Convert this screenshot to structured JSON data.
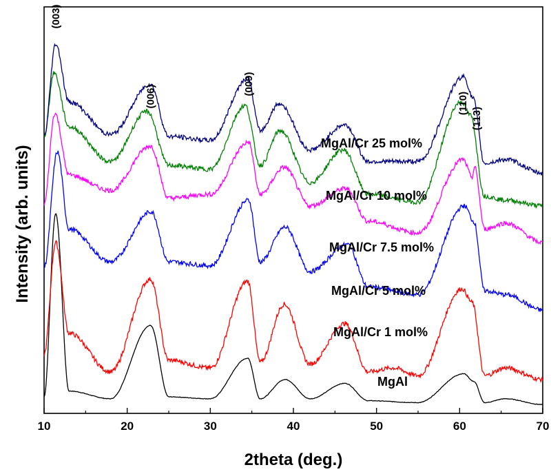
{
  "chart_data": {
    "type": "line",
    "xlabel": "2theta (deg.)",
    "ylabel": "Intensity (arb. units)",
    "xlim": [
      10,
      70
    ],
    "xticks": [
      "10",
      "20",
      "30",
      "40",
      "50",
      "60",
      "70"
    ],
    "y_tick_labels_shown": false,
    "grid": false,
    "legend": "inline labels next to each curve",
    "peak_labels": [
      {
        "text": "(003)",
        "x": 11.4
      },
      {
        "text": "(006)",
        "x": 22.8
      },
      {
        "text": "(009)",
        "x": 34.6
      },
      {
        "text": "(110)",
        "x": 60.4
      },
      {
        "text": "(113)",
        "x": 61.7
      }
    ],
    "series": [
      {
        "name": "MgAl",
        "color": "#000000",
        "x": [
          10,
          11.4,
          13,
          18,
          22.8,
          25,
          30,
          34.5,
          36,
          39,
          42,
          46.2,
          49,
          55,
          60.5,
          61.7,
          63,
          65.5,
          70
        ],
        "y": [
          5,
          100,
          8,
          4,
          42,
          5,
          4,
          25,
          4,
          14,
          4,
          12,
          3,
          2,
          17,
          13,
          2,
          4,
          1
        ]
      },
      {
        "name": "MgAl/Cr 1 mol%",
        "color": "#ff0000",
        "x": [
          10,
          11.4,
          13,
          18,
          22.8,
          25,
          30,
          34.5,
          36,
          38.9,
          42,
          46.2,
          49,
          52,
          55,
          60.3,
          61.5,
          63,
          65.5,
          70
        ],
        "y": [
          27,
          85,
          38,
          18,
          66,
          24,
          20,
          65,
          23,
          53,
          22,
          43,
          18,
          20,
          16,
          61,
          54,
          16,
          20,
          14
        ]
      },
      {
        "name": "MgAl/Cr 5 mol%",
        "color": "#0000ff",
        "x": [
          10,
          11.6,
          13,
          18,
          22.9,
          25,
          30,
          34.6,
          36,
          39,
          42,
          46.5,
          49,
          55,
          60.6,
          61.7,
          63,
          65.5,
          70
        ],
        "y": [
          72,
          132,
          92,
          75,
          101,
          75,
          73,
          107,
          75,
          93,
          70,
          84,
          62,
          58,
          104,
          96,
          60,
          58,
          50
        ]
      },
      {
        "name": "MgAl/Cr 7.5 mol%",
        "color": "#ff00ff",
        "x": [
          10,
          11.3,
          13,
          18,
          22.8,
          25,
          30,
          34.6,
          36,
          38.9,
          42,
          46.3,
          49,
          55,
          60.4,
          61.5,
          61.8,
          63,
          65.5,
          70
        ],
        "y": [
          105,
          152,
          120,
          112,
          135,
          108,
          110,
          137,
          110,
          124,
          104,
          113,
          96,
          90,
          128,
          119,
          124,
          92,
          95,
          85
        ]
      },
      {
        "name": "MgAl/Cr 10 mol%",
        "color": "#008000",
        "x": [
          10,
          11.2,
          13,
          18,
          22.4,
          25,
          30,
          34.2,
          36,
          38.4,
          42,
          46,
          49,
          55,
          60.2,
          61.3,
          63,
          65.5,
          70
        ],
        "y": [
          140,
          173,
          145,
          127,
          153,
          125,
          123,
          156,
          125,
          143,
          116,
          133,
          110,
          106,
          158,
          151,
          109,
          107,
          104
        ]
      },
      {
        "name": "MgAl/Cr 25 mol%",
        "color": "#000080",
        "x": [
          10,
          11.4,
          13,
          18,
          22.8,
          25,
          30,
          34.5,
          36,
          38.3,
          42,
          46.2,
          49,
          55,
          60.5,
          61.6,
          63,
          65.5,
          70
        ],
        "y": [
          140,
          188,
          158,
          141,
          167,
          140,
          138,
          170,
          143,
          157,
          133,
          146,
          127,
          127,
          171,
          160,
          126,
          128,
          121
        ]
      }
    ]
  }
}
